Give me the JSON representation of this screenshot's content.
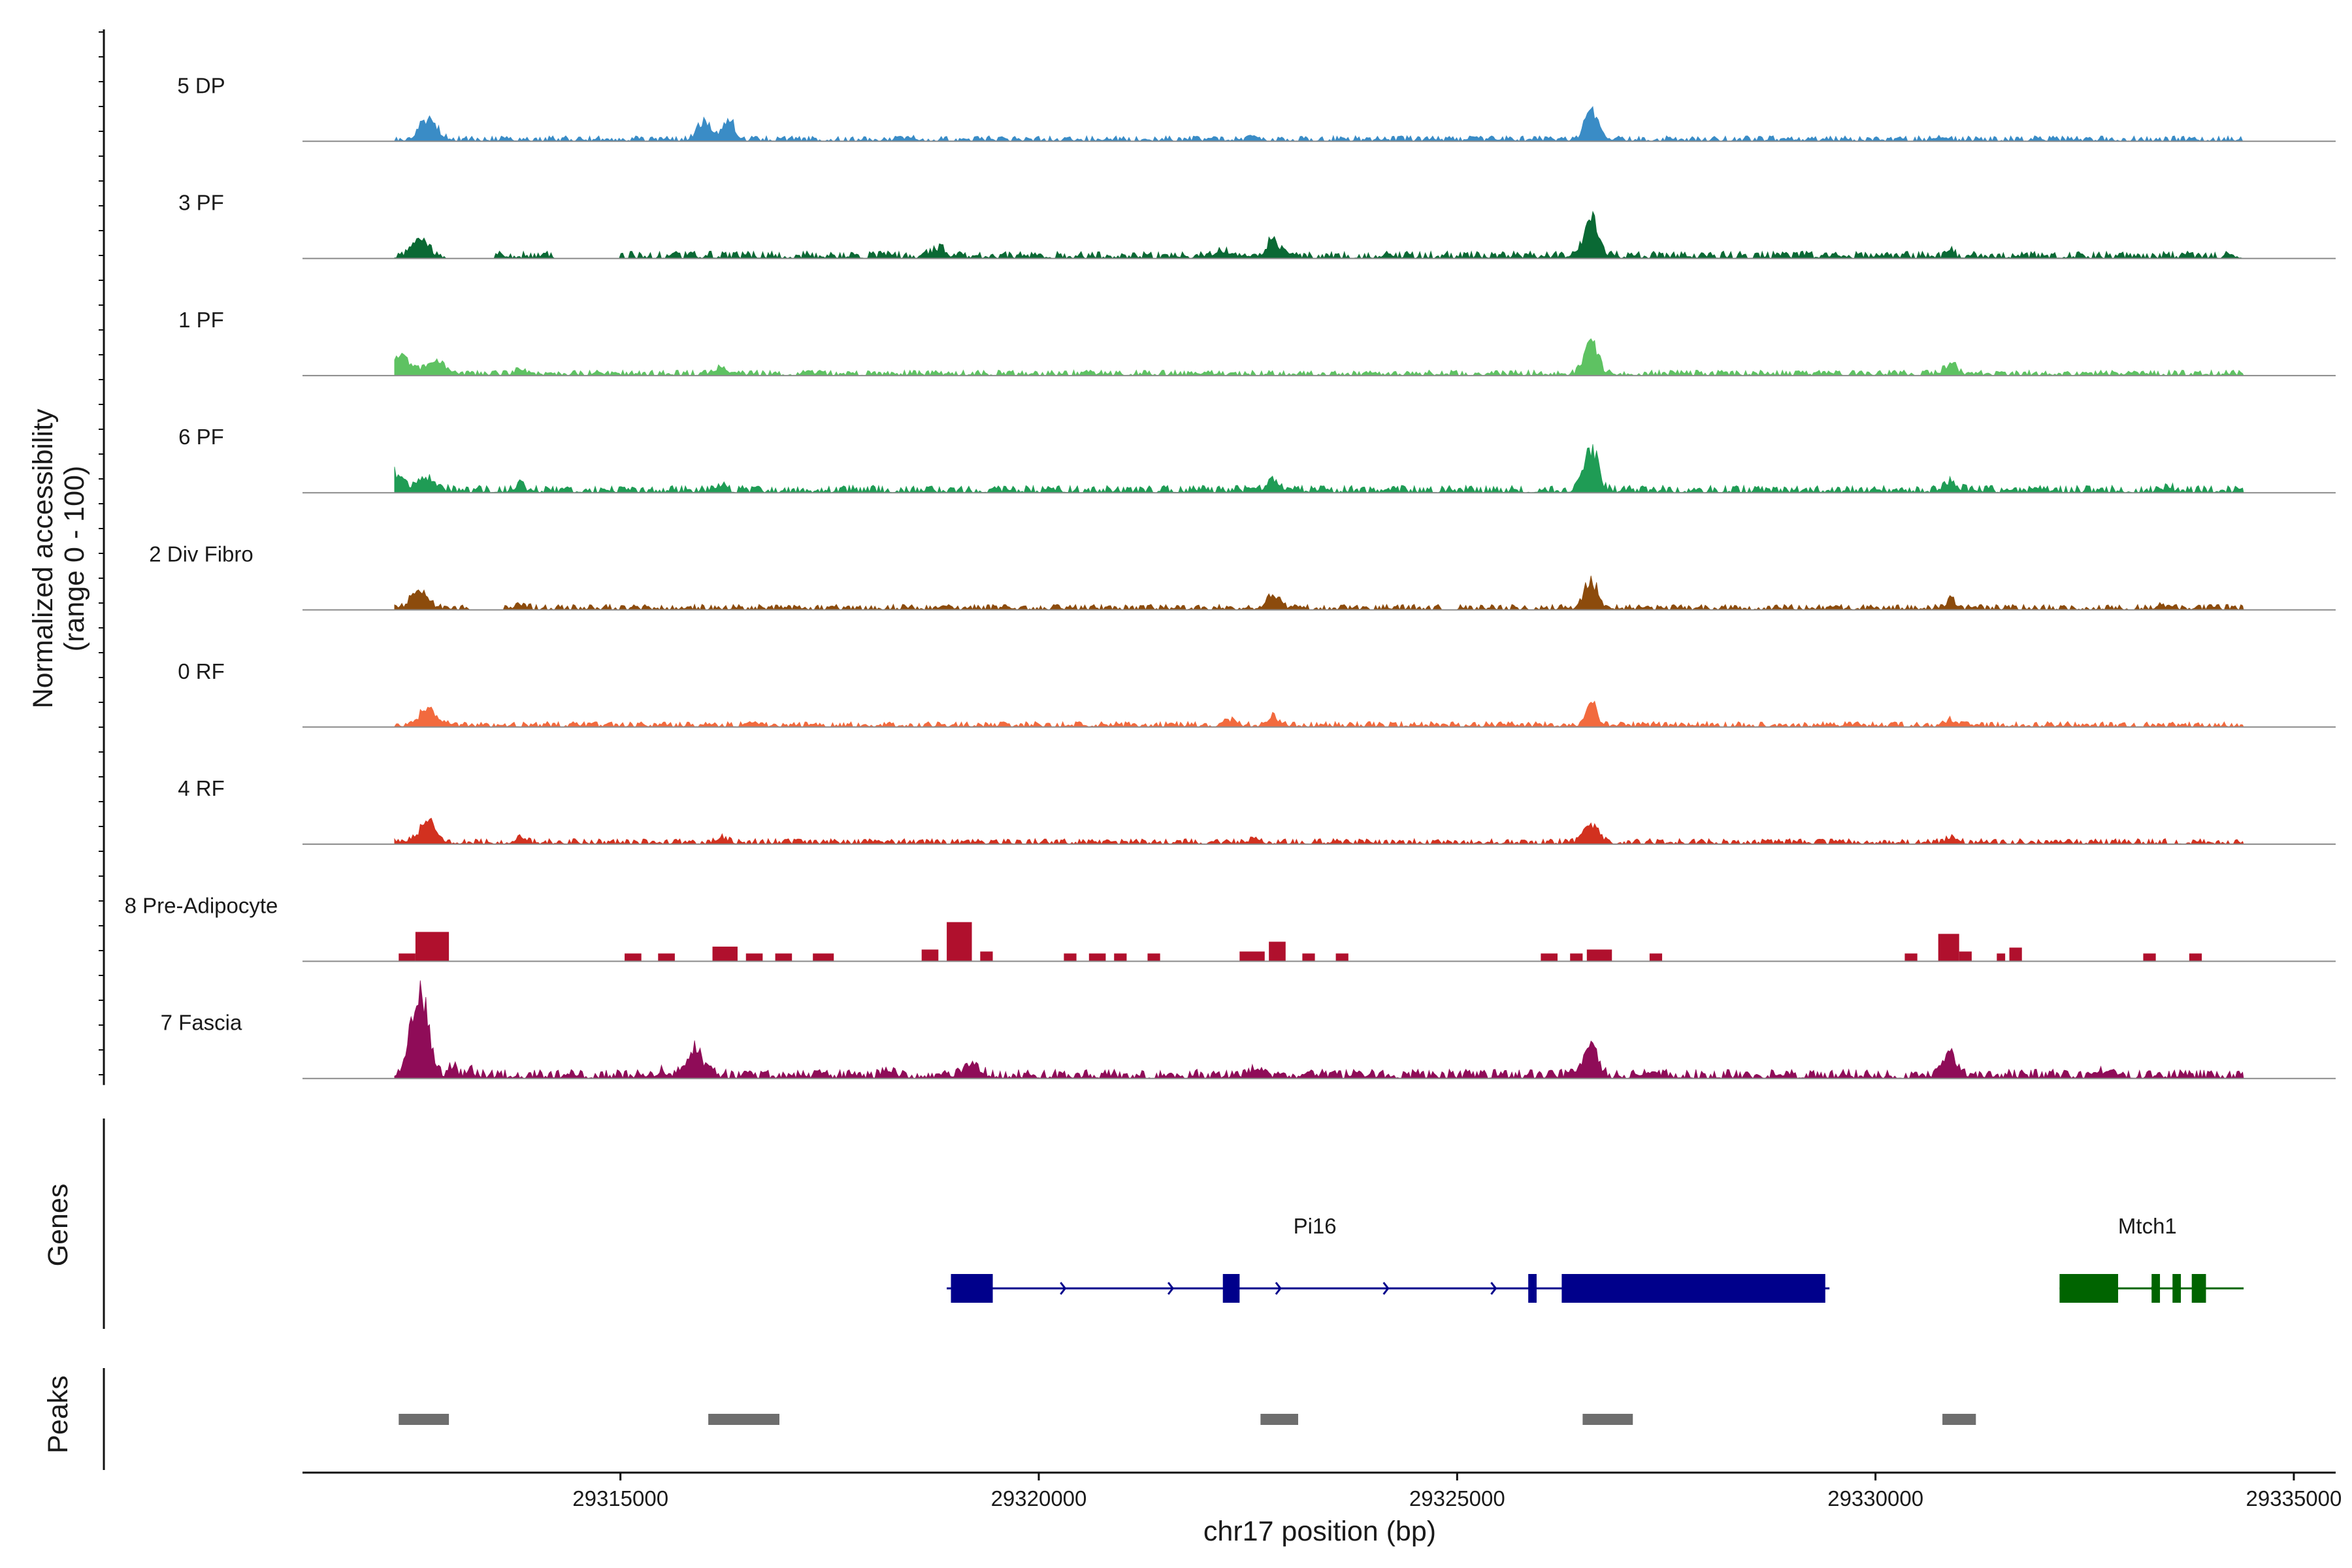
{
  "chart_data": {
    "type": "area",
    "title": "",
    "ylabel_lines": [
      "Normalized accessibility",
      "(range 0 - 100)"
    ],
    "xlabel": "chr17 position (bp)",
    "ylim": [
      0,
      100
    ],
    "xlim": [
      29311200,
      29335500
    ],
    "region": [
      29312300,
      29334400
    ],
    "x_ticks": [
      29315000,
      29320000,
      29325000,
      29330000,
      29335000
    ],
    "x_tick_labels": [
      "29315000",
      "29320000",
      "29325000",
      "29330000",
      "29335000"
    ],
    "panel_titles": {
      "genes": "Genes",
      "peaks": "Peaks"
    },
    "series": [
      {
        "name": "5 DP",
        "color": "#3a8cc6",
        "baseline": 3,
        "sparse": false,
        "gaps": [],
        "peaks": [
          [
            29312700,
            100,
            20
          ],
          [
            29316000,
            80,
            20
          ],
          [
            29316300,
            70,
            20
          ],
          [
            29318500,
            40,
            3
          ],
          [
            29322600,
            50,
            3
          ],
          [
            29326600,
            75,
            30
          ],
          [
            29330800,
            40,
            3
          ],
          [
            29333800,
            40,
            3
          ]
        ]
      },
      {
        "name": "3 PF",
        "color": "#0a6934",
        "baseline": 4,
        "sparse": false,
        "gaps": [
          [
            29312900,
            29313500
          ],
          [
            29314200,
            29315000
          ]
        ],
        "peaks": [
          [
            29312600,
            100,
            16
          ],
          [
            29318800,
            80,
            8
          ],
          [
            29322200,
            100,
            6
          ],
          [
            29322800,
            70,
            16
          ],
          [
            29326600,
            80,
            42
          ],
          [
            29330900,
            35,
            8
          ]
        ]
      },
      {
        "name": "1 PF",
        "color": "#5ec262",
        "baseline": 3,
        "sparse": false,
        "gaps": [],
        "peaks": [
          [
            29312400,
            100,
            18
          ],
          [
            29312800,
            120,
            12
          ],
          [
            29313800,
            60,
            6
          ],
          [
            29316200,
            80,
            7
          ],
          [
            29326600,
            80,
            32
          ],
          [
            29330900,
            70,
            11
          ]
        ]
      },
      {
        "name": "6 PF",
        "color": "#1f9c55",
        "baseline": 4,
        "sparse": false,
        "gaps": [],
        "peaks": [
          [
            29312300,
            100,
            16
          ],
          [
            29312700,
            100,
            12
          ],
          [
            29313800,
            50,
            6
          ],
          [
            29316200,
            50,
            6
          ],
          [
            29322800,
            80,
            10
          ],
          [
            29326600,
            80,
            42
          ],
          [
            29330900,
            70,
            11
          ],
          [
            29333500,
            40,
            5
          ]
        ]
      },
      {
        "name": "2 Div Fibro",
        "color": "#8c4b0c",
        "baseline": 3,
        "sparse": false,
        "gaps": [
          [
            29313200,
            29313600
          ],
          [
            29324800,
            29325000
          ]
        ],
        "peaks": [
          [
            29312600,
            100,
            16
          ],
          [
            29313800,
            60,
            5
          ],
          [
            29322800,
            80,
            12
          ],
          [
            29326600,
            80,
            28
          ],
          [
            29330900,
            45,
            10
          ],
          [
            29333400,
            40,
            5
          ]
        ]
      },
      {
        "name": "0 RF",
        "color": "#f26a3e",
        "baseline": 3,
        "sparse": false,
        "gaps": [],
        "peaks": [
          [
            29312700,
            100,
            18
          ],
          [
            29322300,
            60,
            6
          ],
          [
            29322800,
            60,
            9
          ],
          [
            29326600,
            60,
            24
          ],
          [
            29330900,
            60,
            5
          ]
        ]
      },
      {
        "name": "4 RF",
        "color": "#d2311f",
        "baseline": 3,
        "sparse": false,
        "gaps": [],
        "peaks": [
          [
            29312700,
            100,
            20
          ],
          [
            29313800,
            60,
            5
          ],
          [
            29316200,
            70,
            5
          ],
          [
            29322600,
            50,
            5
          ],
          [
            29326600,
            80,
            20
          ],
          [
            29330900,
            60,
            5
          ]
        ]
      },
      {
        "name": "8 Pre-Adipocyte",
        "color": "#b0102d",
        "baseline": 0,
        "sparse": true,
        "gaps": [],
        "blocks": [
          [
            29312350,
            29312550,
            8
          ],
          [
            29312550,
            29312950,
            30
          ],
          [
            29315050,
            29315250,
            8
          ],
          [
            29315450,
            29315650,
            8
          ],
          [
            29316100,
            29316400,
            15
          ],
          [
            29316500,
            29316700,
            8
          ],
          [
            29316850,
            29317050,
            8
          ],
          [
            29317300,
            29317550,
            8
          ],
          [
            29318600,
            29318800,
            12
          ],
          [
            29318900,
            29319200,
            40
          ],
          [
            29319300,
            29319450,
            10
          ],
          [
            29320300,
            29320450,
            8
          ],
          [
            29320600,
            29320800,
            8
          ],
          [
            29320900,
            29321050,
            8
          ],
          [
            29321300,
            29321450,
            8
          ],
          [
            29322400,
            29322700,
            10
          ],
          [
            29322750,
            29322950,
            20
          ],
          [
            29323150,
            29323300,
            8
          ],
          [
            29323550,
            29323700,
            8
          ],
          [
            29326000,
            29326200,
            8
          ],
          [
            29326350,
            29326500,
            8
          ],
          [
            29326550,
            29326850,
            12
          ],
          [
            29327300,
            29327450,
            8
          ],
          [
            29330350,
            29330500,
            8
          ],
          [
            29330750,
            29331000,
            28
          ],
          [
            29331000,
            29331150,
            10
          ],
          [
            29331450,
            29331550,
            8
          ],
          [
            29331600,
            29331750,
            14
          ],
          [
            29333200,
            29333350,
            8
          ],
          [
            29333750,
            29333900,
            8
          ]
        ]
      },
      {
        "name": "7 Fascia",
        "color": "#8f0c58",
        "baseline": 5,
        "sparse": false,
        "gaps": [],
        "peaks": [
          [
            29312600,
            100,
            85
          ],
          [
            29313000,
            40,
            12
          ],
          [
            29313200,
            40,
            8
          ],
          [
            29315500,
            60,
            5
          ],
          [
            29315900,
            100,
            24
          ],
          [
            29318200,
            60,
            8
          ],
          [
            29319200,
            100,
            10
          ],
          [
            29322600,
            80,
            8
          ],
          [
            29326600,
            80,
            32
          ],
          [
            29330900,
            80,
            22
          ],
          [
            29332800,
            80,
            8
          ]
        ]
      }
    ],
    "genes": [
      {
        "name": "Pi16",
        "strand": "+",
        "start": 29318900,
        "end": 29329450,
        "color": "#00008b",
        "exons": [
          [
            29318950,
            29319450
          ],
          [
            29322200,
            29322400
          ],
          [
            29325850,
            29325950
          ],
          [
            29326250,
            29329400
          ]
        ]
      },
      {
        "name": "Mtch1",
        "strand": "-",
        "start": 29332200,
        "end": 29334400,
        "color": "#006400",
        "exons": [
          [
            29332200,
            29332900
          ],
          [
            29333300,
            29333400
          ],
          [
            29333550,
            29333650
          ],
          [
            29333780,
            29333950
          ]
        ]
      }
    ],
    "peaks": [
      [
        29312350,
        29312950
      ],
      [
        29316050,
        29316900
      ],
      [
        29322650,
        29323100
      ],
      [
        29326500,
        29327100
      ],
      [
        29330800,
        29331200
      ]
    ]
  }
}
